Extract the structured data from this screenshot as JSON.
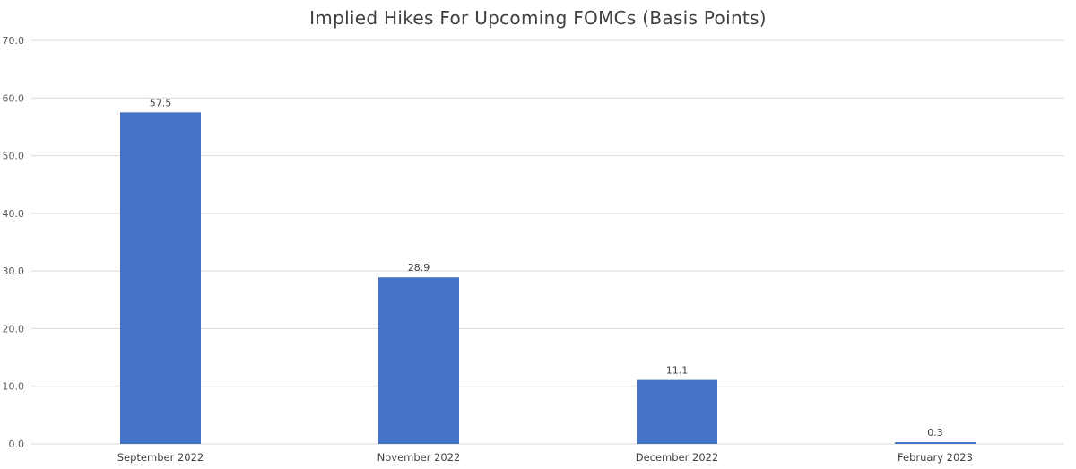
{
  "chart_data": {
    "type": "bar",
    "title": "Implied Hikes For Upcoming FOMCs (Basis Points)",
    "xlabel": "",
    "ylabel": "",
    "categories": [
      "September 2022",
      "November 2022",
      "December 2022",
      "February 2023"
    ],
    "values": [
      57.5,
      28.9,
      11.1,
      0.3
    ],
    "data_labels": [
      "57.5",
      "28.9",
      "11.1",
      "0.3"
    ],
    "ylim": [
      0,
      70
    ],
    "yticks": [
      0,
      10,
      20,
      30,
      40,
      50,
      60,
      70
    ],
    "ytick_labels": [
      "0.0",
      "10.0",
      "20.0",
      "30.0",
      "40.0",
      "50.0",
      "60.0",
      "70.0"
    ],
    "grid": true,
    "legend": "none",
    "bar_color": "#4472c4"
  }
}
